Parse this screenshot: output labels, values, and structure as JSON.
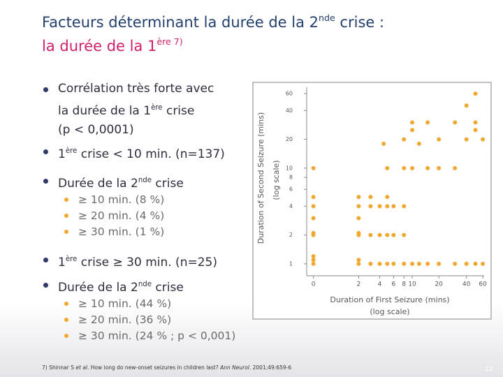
{
  "title": {
    "line1": [
      "Facteurs déterminant la durée de la 2",
      "nde",
      " crise :"
    ],
    "line2": [
      "la durée de la 1",
      "ère 7)"
    ]
  },
  "bullets": [
    {
      "text": [
        "Corrélation très forte avec",
        "la durée de la 1",
        "ère",
        " crise",
        "(p < 0,0001)"
      ]
    },
    {
      "text": [
        "1",
        "ère",
        " crise < 10 min. (n=137)"
      ]
    },
    {
      "text": [
        "Durée de la 2",
        "nde",
        " crise"
      ],
      "sub": [
        "≥ 10 min. (8 %)",
        "≥ 20 min. (4 %)",
        "≥ 30 min. (1 %)"
      ]
    },
    {
      "text": [
        "1",
        "ère",
        " crise ≥ 30 min. (n=25)"
      ]
    },
    {
      "text": [
        "Durée de la 2",
        "nde",
        " crise"
      ],
      "sub": [
        "≥ 10 min. (44 %)",
        "≥ 20 min. (36 %)",
        "≥ 30 min. (24 % ; p < 0,001)"
      ]
    }
  ],
  "footnote": [
    "7) Shinnar S ",
    "et al",
    ". How long do new-onset seizures in children last? ",
    "Ann Neurol",
    ". 2001;49:659-6"
  ],
  "page_number": "12",
  "chart_data": {
    "type": "scatter",
    "xlabel": "Duration of First Seizure (mins)",
    "xlabel_sub": "(log scale)",
    "ylabel": "Duration of Second Seizure (mins)",
    "ylabel_sub": "(log scale)",
    "x": [
      0,
      0,
      0,
      0,
      0,
      0,
      0,
      0,
      0,
      2,
      2,
      2,
      2,
      2,
      2,
      2,
      3,
      3,
      3,
      3,
      4,
      4,
      4,
      4.5,
      5,
      5,
      5,
      5,
      5,
      6,
      6,
      6,
      8,
      8,
      8,
      8,
      8,
      10,
      10,
      10,
      10,
      12,
      12,
      15,
      15,
      15,
      20,
      20,
      20,
      30,
      30,
      30,
      40,
      40,
      40,
      50,
      50,
      50,
      50,
      60,
      60
    ],
    "y": [
      1,
      1.1,
      1.2,
      2,
      2.1,
      3,
      4,
      5,
      10,
      1,
      1.1,
      2,
      2.1,
      3,
      4,
      5,
      1,
      2,
      4,
      5,
      1,
      2,
      4,
      18,
      1,
      2,
      4,
      5,
      10,
      1,
      2,
      4,
      1,
      2,
      4,
      10,
      20,
      1,
      10,
      25,
      30,
      1,
      18,
      1,
      10,
      30,
      1,
      10,
      20,
      1,
      10,
      30,
      1,
      20,
      45,
      1,
      25,
      30,
      60,
      1,
      20
    ],
    "color": "#f0a830",
    "xscale": "log1p",
    "yscale": "log",
    "xlim": [
      -0.15,
      62
    ],
    "ylim": [
      0.75,
      70
    ],
    "xticks": [
      0,
      2,
      4,
      6,
      8,
      10,
      20,
      40,
      60
    ],
    "yticks": [
      1,
      2,
      4,
      6,
      8,
      10,
      20,
      40,
      60
    ]
  }
}
